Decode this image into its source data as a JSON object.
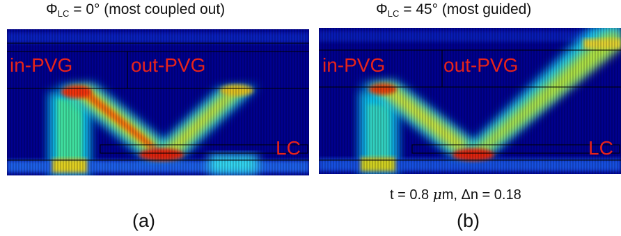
{
  "panel_a": {
    "title_phi": "Φ",
    "title_sub": "LC",
    "title_rest": " = 0° (most coupled out)",
    "label_in": "in-PVG",
    "label_out": "out-PVG",
    "label_lc": "LC",
    "caption": "(a)"
  },
  "panel_b": {
    "title_phi": "Φ",
    "title_sub": "LC",
    "title_rest": " = 45° (most guided)",
    "label_in": "in-PVG",
    "label_out": "out-PVG",
    "label_lc": "LC",
    "caption": "(b)"
  },
  "parameters": {
    "t_prefix": "t = 0.8 ",
    "mu": "μ",
    "t_suffix": "m, Δn = 0.18"
  },
  "colors": {
    "background_field": "#00008f",
    "label_red": "#e8231a"
  }
}
